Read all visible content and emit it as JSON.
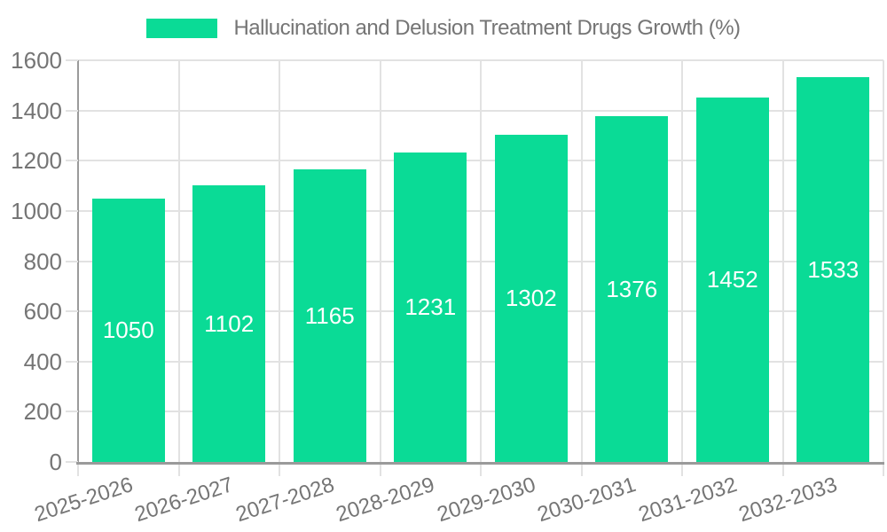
{
  "legend": {
    "label": "Hallucination and Delusion Treatment Drugs Growth (%)"
  },
  "chart_data": {
    "type": "bar",
    "title": "Hallucination and Delusion Treatment Drugs Growth (%)",
    "categories": [
      "2025-2026",
      "2026-2027",
      "2027-2028",
      "2028-2029",
      "2029-2030",
      "2030-2031",
      "2031-2032",
      "2032-2033"
    ],
    "values": [
      1050,
      1102,
      1165,
      1231,
      1302,
      1376,
      1452,
      1533
    ],
    "value_labels": [
      "1050",
      "1102",
      "1165",
      "1231",
      "1302",
      "1376",
      "1452",
      "1533"
    ],
    "xlabel": "",
    "ylabel": "",
    "ylim": [
      0,
      1600
    ],
    "yticks": [
      0,
      200,
      400,
      600,
      800,
      1000,
      1200,
      1400,
      1600
    ],
    "grid": true,
    "legend_position": "top-center",
    "x_label_rotation_deg": -18,
    "colors": {
      "bar": "#0adb96",
      "grid": "#e2e2e2",
      "axis": "#9a9a9a",
      "tick_text": "#757575",
      "value_text": "#ffffff",
      "background": "#ffffff"
    }
  }
}
